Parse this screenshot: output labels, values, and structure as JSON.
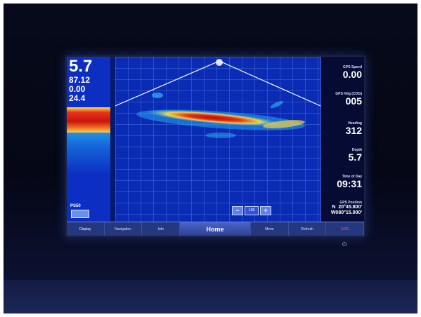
{
  "sonar": {
    "left": {
      "depth": "5.7",
      "water_temp": "87.12",
      "speed": "0.00",
      "voltage": "24.4"
    },
    "psd_label": "PS50",
    "zoom": {
      "minus": "−",
      "value": "138",
      "plus": "+"
    }
  },
  "data_fields": [
    {
      "label": "GPS Speed",
      "value": "0.00"
    },
    {
      "label": "GPS Hdg (COG)",
      "value": "005"
    },
    {
      "label": "Heading",
      "value": "312"
    },
    {
      "label": "Depth",
      "value": "5.7"
    },
    {
      "label": "Time of Day",
      "value": "09:31"
    },
    {
      "label": "GPS Position",
      "value": "N  20°45.800'\nW080°15.000'"
    }
  ],
  "bottom_bar": {
    "items": [
      "Display",
      "Navigation",
      "Info",
      "Home",
      "Menu",
      "Refresh",
      "SOS"
    ]
  },
  "colors": {
    "sonar_blue": "#0a2bb4",
    "hot": "#c8150e",
    "warm": "#f6e54a",
    "panel": "#050b33"
  },
  "icons": {
    "power": "power-icon"
  }
}
